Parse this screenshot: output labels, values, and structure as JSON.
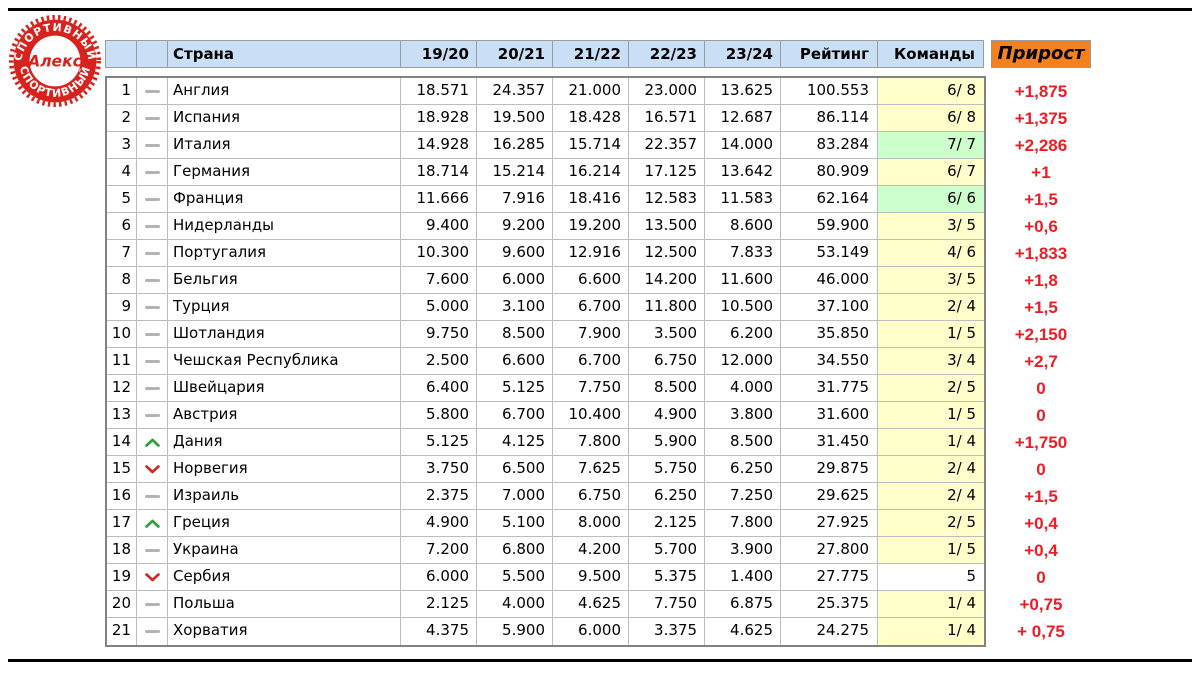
{
  "logo": {
    "center_text": "Алекс",
    "ring_text_top": "СПОРТИВНЫЙ",
    "ring_text_bottom": "СПОРТИВНЫЙ"
  },
  "colors": {
    "header_bg": "#c9dff5",
    "growth_header_bg": "#f5811e",
    "growth_text": "#ee1c25",
    "teams_bg": {
      "yellow": "#ffffcc",
      "green": "#ccffcc",
      "white": "#ffffff"
    },
    "up_arrow": "#2e9e3f",
    "down_arrow": "#cf2a27",
    "badge_red": "#d6231e"
  },
  "table": {
    "header": {
      "country": "Страна",
      "seasons": [
        "19/20",
        "20/21",
        "21/22",
        "22/23",
        "23/24"
      ],
      "rating": "Рейтинг",
      "teams": "Команды",
      "growth": "Прирост"
    },
    "rows": [
      {
        "rank": "1",
        "movement": "same",
        "country": "Англия",
        "seasons": [
          "18.571",
          "24.357",
          "21.000",
          "23.000",
          "13.625"
        ],
        "rating": "100.553",
        "teams": "6/ 8",
        "teams_bg": "yellow",
        "growth": "+1,875"
      },
      {
        "rank": "2",
        "movement": "same",
        "country": "Испания",
        "seasons": [
          "18.928",
          "19.500",
          "18.428",
          "16.571",
          "12.687"
        ],
        "rating": "86.114",
        "teams": "6/ 8",
        "teams_bg": "yellow",
        "growth": "+1,375"
      },
      {
        "rank": "3",
        "movement": "same",
        "country": "Италия",
        "seasons": [
          "14.928",
          "16.285",
          "15.714",
          "22.357",
          "14.000"
        ],
        "rating": "83.284",
        "teams": "7/ 7",
        "teams_bg": "green",
        "growth": "+2,286"
      },
      {
        "rank": "4",
        "movement": "same",
        "country": "Германия",
        "seasons": [
          "18.714",
          "15.214",
          "16.214",
          "17.125",
          "13.642"
        ],
        "rating": "80.909",
        "teams": "6/ 7",
        "teams_bg": "yellow",
        "growth": "+1"
      },
      {
        "rank": "5",
        "movement": "same",
        "country": "Франция",
        "seasons": [
          "11.666",
          "7.916",
          "18.416",
          "12.583",
          "11.583"
        ],
        "rating": "62.164",
        "teams": "6/ 6",
        "teams_bg": "green",
        "growth": "+1,5"
      },
      {
        "rank": "6",
        "movement": "same",
        "country": "Нидерланды",
        "seasons": [
          "9.400",
          "9.200",
          "19.200",
          "13.500",
          "8.600"
        ],
        "rating": "59.900",
        "teams": "3/ 5",
        "teams_bg": "yellow",
        "growth": "+0,6"
      },
      {
        "rank": "7",
        "movement": "same",
        "country": "Португалия",
        "seasons": [
          "10.300",
          "9.600",
          "12.916",
          "12.500",
          "7.833"
        ],
        "rating": "53.149",
        "teams": "4/ 6",
        "teams_bg": "yellow",
        "growth": "+1,833"
      },
      {
        "rank": "8",
        "movement": "same",
        "country": "Бельгия",
        "seasons": [
          "7.600",
          "6.000",
          "6.600",
          "14.200",
          "11.600"
        ],
        "rating": "46.000",
        "teams": "3/ 5",
        "teams_bg": "yellow",
        "growth": "+1,8"
      },
      {
        "rank": "9",
        "movement": "same",
        "country": "Турция",
        "seasons": [
          "5.000",
          "3.100",
          "6.700",
          "11.800",
          "10.500"
        ],
        "rating": "37.100",
        "teams": "2/ 4",
        "teams_bg": "yellow",
        "growth": "+1,5"
      },
      {
        "rank": "10",
        "movement": "same",
        "country": "Шотландия",
        "seasons": [
          "9.750",
          "8.500",
          "7.900",
          "3.500",
          "6.200"
        ],
        "rating": "35.850",
        "teams": "1/ 5",
        "teams_bg": "yellow",
        "growth": "+2,150"
      },
      {
        "rank": "11",
        "movement": "same",
        "country": "Чешская Республика",
        "seasons": [
          "2.500",
          "6.600",
          "6.700",
          "6.750",
          "12.000"
        ],
        "rating": "34.550",
        "teams": "3/ 4",
        "teams_bg": "yellow",
        "growth": "+2,7"
      },
      {
        "rank": "12",
        "movement": "same",
        "country": "Швейцария",
        "seasons": [
          "6.400",
          "5.125",
          "7.750",
          "8.500",
          "4.000"
        ],
        "rating": "31.775",
        "teams": "2/ 5",
        "teams_bg": "yellow",
        "growth": "0"
      },
      {
        "rank": "13",
        "movement": "same",
        "country": "Австрия",
        "seasons": [
          "5.800",
          "6.700",
          "10.400",
          "4.900",
          "3.800"
        ],
        "rating": "31.600",
        "teams": "1/ 5",
        "teams_bg": "yellow",
        "growth": "0"
      },
      {
        "rank": "14",
        "movement": "up",
        "country": "Дания",
        "seasons": [
          "5.125",
          "4.125",
          "7.800",
          "5.900",
          "8.500"
        ],
        "rating": "31.450",
        "teams": "1/ 4",
        "teams_bg": "yellow",
        "growth": "+1,750"
      },
      {
        "rank": "15",
        "movement": "down",
        "country": "Норвегия",
        "seasons": [
          "3.750",
          "6.500",
          "7.625",
          "5.750",
          "6.250"
        ],
        "rating": "29.875",
        "teams": "2/ 4",
        "teams_bg": "yellow",
        "growth": "0"
      },
      {
        "rank": "16",
        "movement": "same",
        "country": "Израиль",
        "seasons": [
          "2.375",
          "7.000",
          "6.750",
          "6.250",
          "7.250"
        ],
        "rating": "29.625",
        "teams": "2/ 4",
        "teams_bg": "yellow",
        "growth": "+1,5"
      },
      {
        "rank": "17",
        "movement": "up",
        "country": "Греция",
        "seasons": [
          "4.900",
          "5.100",
          "8.000",
          "2.125",
          "7.800"
        ],
        "rating": "27.925",
        "teams": "2/ 5",
        "teams_bg": "yellow",
        "growth": "+0,4"
      },
      {
        "rank": "18",
        "movement": "same",
        "country": "Украина",
        "seasons": [
          "7.200",
          "6.800",
          "4.200",
          "5.700",
          "3.900"
        ],
        "rating": "27.800",
        "teams": "1/ 5",
        "teams_bg": "yellow",
        "growth": "+0,4"
      },
      {
        "rank": "19",
        "movement": "down",
        "country": "Сербия",
        "seasons": [
          "6.000",
          "5.500",
          "9.500",
          "5.375",
          "1.400"
        ],
        "rating": "27.775",
        "teams": "5",
        "teams_bg": "white",
        "growth": "0"
      },
      {
        "rank": "20",
        "movement": "same",
        "country": "Польша",
        "seasons": [
          "2.125",
          "4.000",
          "4.625",
          "7.750",
          "6.875"
        ],
        "rating": "25.375",
        "teams": "1/ 4",
        "teams_bg": "yellow",
        "growth": "+0,75"
      },
      {
        "rank": "21",
        "movement": "same",
        "country": "Хорватия",
        "seasons": [
          "4.375",
          "5.900",
          "6.000",
          "3.375",
          "4.625"
        ],
        "rating": "24.275",
        "teams": "1/ 4",
        "teams_bg": "yellow",
        "growth": "+ 0,75"
      }
    ]
  }
}
